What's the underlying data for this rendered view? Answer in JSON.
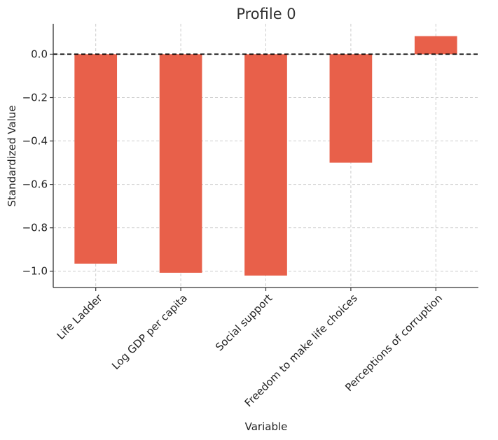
{
  "chart_data": {
    "type": "bar",
    "title": "Profile 0",
    "xlabel": "Variable",
    "ylabel": "Standardized Value",
    "categories": [
      "Life Ladder",
      "Log GDP per capita",
      "Social support",
      "Freedom to make life choices",
      "Perceptions of corruption"
    ],
    "values": [
      -0.965,
      -1.007,
      -1.02,
      -0.5,
      0.083
    ],
    "ylim": [
      -1.075,
      0.14
    ],
    "yticks": [
      0.0,
      -0.2,
      -0.4,
      -0.6,
      -0.8,
      -1.0
    ],
    "ytick_labels": [
      "0.0",
      "−0.2",
      "−0.4",
      "−0.6",
      "−0.8",
      "−1.0"
    ],
    "grid": true,
    "reference_line": 0,
    "bar_color": "#e8604a"
  }
}
